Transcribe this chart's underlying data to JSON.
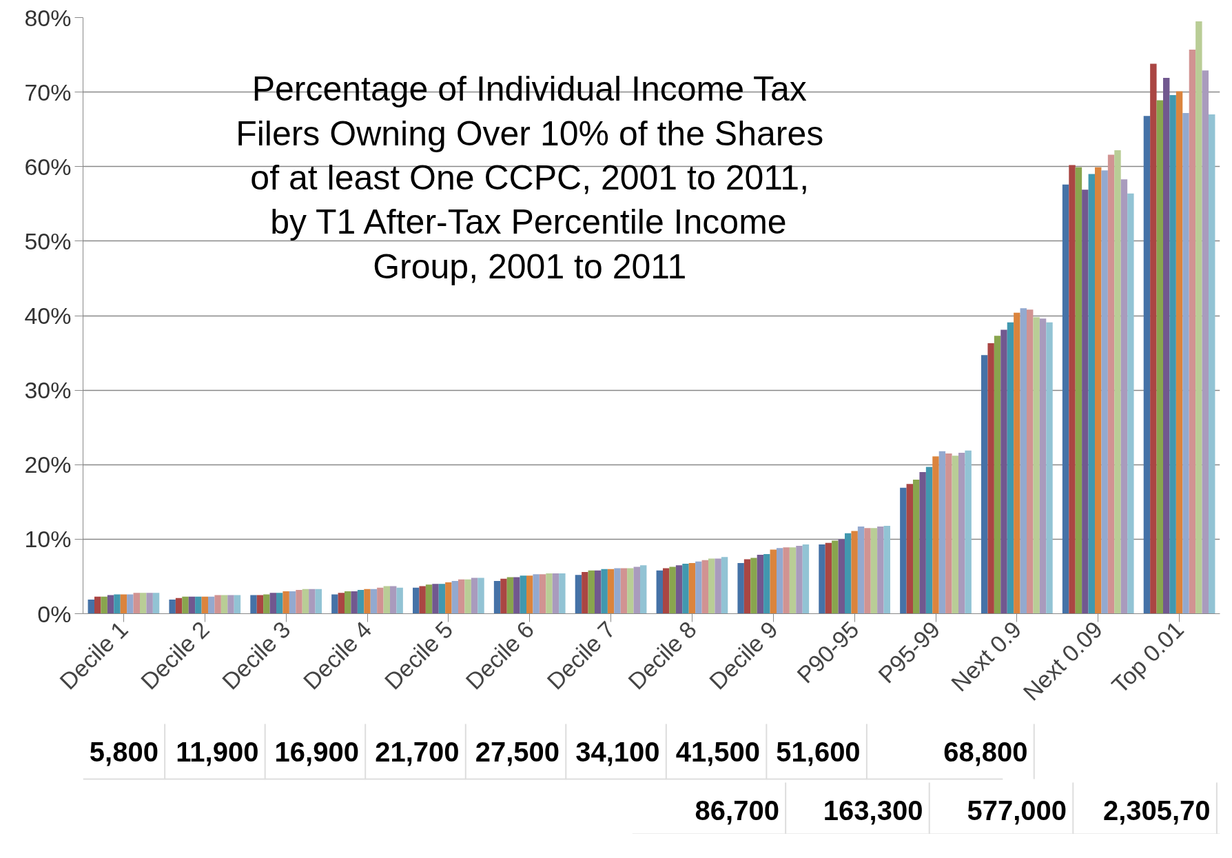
{
  "chart_data": {
    "type": "bar",
    "title": "Percentage of Individual Income Tax Filers Owning Over 10% of the Shares of at least One CCPC, 2001 to 2011, by T1 After-Tax Percentile Income Group, 2001 to 2011",
    "categories": [
      "Decile 1",
      "Decile 2",
      "Decile 3",
      "Decile 4",
      "Decile 5",
      "Decile 6",
      "Decile 7",
      "Decile 8",
      "Decile 9",
      "P90-95",
      "P95-99",
      "Next 0.9",
      "Next 0.09",
      "Top 0.01"
    ],
    "series": [
      {
        "color": "#4572a7",
        "values": [
          1.9,
          1.9,
          2.5,
          2.6,
          3.5,
          4.4,
          5.2,
          5.8,
          6.8,
          9.3,
          16.9,
          34.7,
          57.6,
          66.8
        ]
      },
      {
        "color": "#aa4643",
        "values": [
          2.3,
          2.1,
          2.5,
          2.8,
          3.7,
          4.7,
          5.6,
          6.1,
          7.3,
          9.5,
          17.4,
          36.3,
          60.2,
          73.8
        ]
      },
      {
        "color": "#89a54e",
        "values": [
          2.3,
          2.3,
          2.6,
          3.0,
          3.9,
          4.9,
          5.8,
          6.3,
          7.5,
          9.8,
          18.0,
          37.3,
          59.9,
          68.9
        ]
      },
      {
        "color": "#71588f",
        "values": [
          2.5,
          2.3,
          2.8,
          3.0,
          4.0,
          4.9,
          5.8,
          6.5,
          7.9,
          10.0,
          19.0,
          38.1,
          56.9,
          71.9
        ]
      },
      {
        "color": "#4198af",
        "values": [
          2.6,
          2.3,
          2.8,
          3.2,
          4.0,
          5.1,
          6.0,
          6.7,
          8.0,
          10.8,
          19.7,
          39.1,
          59.0,
          69.6
        ]
      },
      {
        "color": "#db843d",
        "values": [
          2.6,
          2.3,
          3.0,
          3.3,
          4.2,
          5.1,
          6.0,
          6.8,
          8.6,
          11.1,
          21.1,
          40.4,
          59.9,
          70.1
        ]
      },
      {
        "color": "#93a9cf",
        "values": [
          2.6,
          2.3,
          3.0,
          3.3,
          4.4,
          5.3,
          6.1,
          7.0,
          8.8,
          11.7,
          21.8,
          41.0,
          59.5,
          67.2
        ]
      },
      {
        "color": "#d19392",
        "values": [
          2.8,
          2.5,
          3.2,
          3.5,
          4.6,
          5.3,
          6.1,
          7.2,
          8.9,
          11.5,
          21.5,
          40.8,
          61.6,
          75.7
        ]
      },
      {
        "color": "#b9cd96",
        "values": [
          2.8,
          2.5,
          3.3,
          3.7,
          4.6,
          5.4,
          6.1,
          7.4,
          8.9,
          11.5,
          21.2,
          39.8,
          62.2,
          79.5
        ]
      },
      {
        "color": "#a99bbd",
        "values": [
          2.8,
          2.5,
          3.3,
          3.7,
          4.8,
          5.4,
          6.3,
          7.4,
          9.1,
          11.7,
          21.6,
          39.6,
          58.3,
          72.9
        ]
      },
      {
        "color": "#92c3d4",
        "values": [
          2.8,
          2.5,
          3.3,
          3.5,
          4.8,
          5.4,
          6.5,
          7.6,
          9.3,
          11.8,
          21.9,
          39.1,
          56.4,
          67.0
        ]
      }
    ],
    "ylim": [
      0,
      80
    ],
    "yticks": [
      {
        "value": 0,
        "label": "0%"
      },
      {
        "value": 10,
        "label": "10%"
      },
      {
        "value": 20,
        "label": "20%"
      },
      {
        "value": 30,
        "label": "30%"
      },
      {
        "value": 40,
        "label": "40%"
      },
      {
        "value": 50,
        "label": "50%"
      },
      {
        "value": 60,
        "label": "60%"
      },
      {
        "value": 70,
        "label": "70%"
      },
      {
        "value": 80,
        "label": "80%"
      }
    ],
    "grid": "y",
    "annotations": [
      "5,800",
      "11,900",
      "16,900",
      "21,700",
      "27,500",
      "34,100",
      "41,500",
      "51,600",
      "68,800",
      "86,700",
      "163,300",
      "577,000",
      "2,305,70"
    ]
  }
}
